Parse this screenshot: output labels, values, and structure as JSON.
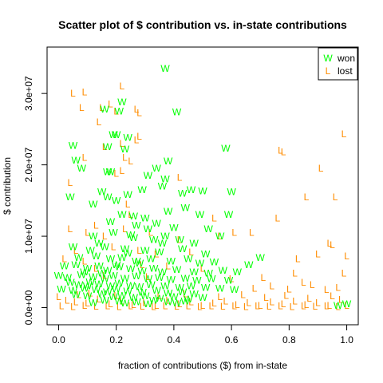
{
  "chart_data": {
    "type": "scatter",
    "title": "Scatter plot of $ contribution vs. in-state contributions",
    "xlabel": "fraction of contributions ($) from in-state",
    "ylabel": "$ contribution",
    "xlim": [
      -0.04,
      1.04
    ],
    "ylim": [
      -2400000,
      36500000
    ],
    "x_ticks": [
      0.0,
      0.2,
      0.4,
      0.6,
      0.8,
      1.0
    ],
    "x_tick_labels": [
      "0.0",
      "0.2",
      "0.4",
      "0.6",
      "0.8",
      "1.0"
    ],
    "y_ticks": [
      0,
      10000000,
      20000000,
      30000000
    ],
    "y_tick_labels": [
      "0.0e+00",
      "1.0e+07",
      "2.0e+07",
      "3.0e+07"
    ],
    "grid": false,
    "legend_position": "top-right",
    "series": [
      {
        "name": "won",
        "marker": "W",
        "color": "#00ff00",
        "points": [
          [
            0.37,
            33500000
          ],
          [
            0.22,
            28800000
          ],
          [
            0.16,
            27800000
          ],
          [
            0.21,
            27500000
          ],
          [
            0.41,
            27400000
          ],
          [
            0.2,
            24200000
          ],
          [
            0.19,
            24200000
          ],
          [
            0.24,
            23800000
          ],
          [
            0.17,
            22500000
          ],
          [
            0.23,
            22200000
          ],
          [
            0.58,
            22300000
          ],
          [
            0.05,
            22700000
          ],
          [
            0.38,
            20500000
          ],
          [
            0.06,
            20600000
          ],
          [
            0.08,
            19500000
          ],
          [
            0.34,
            19500000
          ],
          [
            0.17,
            19000000
          ],
          [
            0.18,
            19000000
          ],
          [
            0.31,
            18500000
          ],
          [
            0.37,
            18000000
          ],
          [
            0.04,
            15500000
          ],
          [
            0.15,
            16200000
          ],
          [
            0.17,
            15500000
          ],
          [
            0.2,
            15000000
          ],
          [
            0.24,
            15800000
          ],
          [
            0.29,
            16500000
          ],
          [
            0.36,
            17000000
          ],
          [
            0.43,
            16000000
          ],
          [
            0.46,
            16500000
          ],
          [
            0.5,
            16300000
          ],
          [
            0.6,
            16200000
          ],
          [
            0.12,
            14500000
          ],
          [
            0.22,
            13000000
          ],
          [
            0.26,
            12800000
          ],
          [
            0.3,
            12500000
          ],
          [
            0.38,
            13500000
          ],
          [
            0.44,
            14000000
          ],
          [
            0.49,
            13000000
          ],
          [
            0.59,
            13000000
          ],
          [
            0.27,
            11500000
          ],
          [
            0.31,
            11000000
          ],
          [
            0.34,
            11800000
          ],
          [
            0.4,
            11200000
          ],
          [
            0.52,
            11000000
          ],
          [
            0.12,
            10000000
          ],
          [
            0.19,
            10500000
          ],
          [
            0.25,
            10200000
          ],
          [
            0.33,
            9500000
          ],
          [
            0.37,
            10000000
          ],
          [
            0.42,
            9500000
          ],
          [
            0.47,
            9000000
          ],
          [
            0.56,
            10000000
          ],
          [
            0.05,
            8500000
          ],
          [
            0.11,
            8000000
          ],
          [
            0.16,
            8500000
          ],
          [
            0.23,
            8200000
          ],
          [
            0.3,
            8000000
          ],
          [
            0.35,
            7800000
          ],
          [
            0.43,
            8200000
          ],
          [
            0.51,
            7500000
          ],
          [
            0.07,
            7000000
          ],
          [
            0.13,
            7200000
          ],
          [
            0.18,
            6800000
          ],
          [
            0.22,
            7000000
          ],
          [
            0.27,
            6500000
          ],
          [
            0.32,
            6800000
          ],
          [
            0.39,
            6500000
          ],
          [
            0.45,
            6800000
          ],
          [
            0.49,
            6200000
          ],
          [
            0.54,
            6400000
          ],
          [
            0.7,
            7000000
          ],
          [
            0.02,
            5800000
          ],
          [
            0.06,
            6000000
          ],
          [
            0.1,
            5500000
          ],
          [
            0.14,
            5800000
          ],
          [
            0.17,
            5200000
          ],
          [
            0.21,
            5700000
          ],
          [
            0.25,
            5400000
          ],
          [
            0.29,
            5100000
          ],
          [
            0.33,
            5500000
          ],
          [
            0.36,
            5000000
          ],
          [
            0.41,
            5300000
          ],
          [
            0.47,
            5000000
          ],
          [
            0.52,
            4800000
          ],
          [
            0.57,
            5200000
          ],
          [
            0.62,
            5000000
          ],
          [
            0.66,
            6000000
          ],
          [
            0.0,
            4500000
          ],
          [
            0.03,
            4200000
          ],
          [
            0.08,
            4600000
          ],
          [
            0.12,
            4300000
          ],
          [
            0.16,
            4000000
          ],
          [
            0.19,
            4500000
          ],
          [
            0.23,
            4100000
          ],
          [
            0.27,
            4400000
          ],
          [
            0.31,
            4000000
          ],
          [
            0.35,
            4200000
          ],
          [
            0.39,
            3900000
          ],
          [
            0.44,
            4100000
          ],
          [
            0.48,
            3800000
          ],
          [
            0.53,
            4000000
          ],
          [
            0.59,
            3800000
          ],
          [
            0.04,
            3500000
          ],
          [
            0.07,
            3200000
          ],
          [
            0.11,
            3600000
          ],
          [
            0.14,
            3300000
          ],
          [
            0.18,
            3000000
          ],
          [
            0.21,
            3400000
          ],
          [
            0.25,
            3100000
          ],
          [
            0.28,
            2900000
          ],
          [
            0.32,
            3200000
          ],
          [
            0.37,
            3000000
          ],
          [
            0.42,
            2800000
          ],
          [
            0.46,
            3000000
          ],
          [
            0.51,
            2800000
          ],
          [
            0.56,
            2700000
          ],
          [
            0.61,
            2500000
          ],
          [
            0.01,
            2600000
          ],
          [
            0.05,
            2400000
          ],
          [
            0.09,
            2700000
          ],
          [
            0.13,
            2500000
          ],
          [
            0.17,
            2200000
          ],
          [
            0.2,
            2600000
          ],
          [
            0.24,
            2300000
          ],
          [
            0.29,
            2100000
          ],
          [
            0.34,
            2400000
          ],
          [
            0.38,
            2000000
          ],
          [
            0.43,
            2200000
          ],
          [
            0.47,
            1900000
          ],
          [
            0.06,
            1800000
          ],
          [
            0.1,
            1600000
          ],
          [
            0.15,
            1900000
          ],
          [
            0.19,
            1500000
          ],
          [
            0.22,
            1700000
          ],
          [
            0.26,
            1400000
          ],
          [
            0.3,
            1600000
          ],
          [
            0.35,
            1300000
          ],
          [
            0.4,
            1500000
          ],
          [
            0.45,
            1200000
          ],
          [
            0.5,
            1400000
          ],
          [
            0.16,
            1000000
          ],
          [
            0.21,
            900000
          ],
          [
            0.27,
            800000
          ],
          [
            0.33,
            1000000
          ],
          [
            0.38,
            800000
          ],
          [
            0.44,
            900000
          ],
          [
            0.12,
            700000
          ],
          [
            0.23,
            600000
          ],
          [
            0.31,
            500000
          ],
          [
            0.41,
            600000
          ],
          [
            0.18,
            12000000
          ],
          [
            0.14,
            9000000
          ],
          [
            0.09,
            5000000
          ],
          [
            0.26,
            9800000
          ],
          [
            0.2,
            6000000
          ],
          [
            0.15,
            4800000
          ],
          [
            0.24,
            7600000
          ],
          [
            0.28,
            6200000
          ],
          [
            0.36,
            9000000
          ],
          [
            0.1,
            3000000
          ],
          [
            1.0,
            500000
          ],
          [
            0.97,
            300000
          ]
        ]
      },
      {
        "name": "lost",
        "marker": "L",
        "color": "#ff8c00",
        "points": [
          [
            0.05,
            30000000
          ],
          [
            0.09,
            30200000
          ],
          [
            0.22,
            31000000
          ],
          [
            0.08,
            28000000
          ],
          [
            0.15,
            28000000
          ],
          [
            0.18,
            28500000
          ],
          [
            0.2,
            27500000
          ],
          [
            0.27,
            27800000
          ],
          [
            0.28,
            27300000
          ],
          [
            0.14,
            26000000
          ],
          [
            0.28,
            24000000
          ],
          [
            0.27,
            23500000
          ],
          [
            0.22,
            23000000
          ],
          [
            0.16,
            22500000
          ],
          [
            0.99,
            24300000
          ],
          [
            0.77,
            22000000
          ],
          [
            0.78,
            21800000
          ],
          [
            0.09,
            21000000
          ],
          [
            0.23,
            21000000
          ],
          [
            0.25,
            20500000
          ],
          [
            0.91,
            19500000
          ],
          [
            0.22,
            19200000
          ],
          [
            0.2,
            18800000
          ],
          [
            0.42,
            18200000
          ],
          [
            0.04,
            17500000
          ],
          [
            0.86,
            15500000
          ],
          [
            0.96,
            15500000
          ],
          [
            0.24,
            14500000
          ],
          [
            0.25,
            13000000
          ],
          [
            0.76,
            12500000
          ],
          [
            0.54,
            12500000
          ],
          [
            0.13,
            11500000
          ],
          [
            0.23,
            11000000
          ],
          [
            0.61,
            10500000
          ],
          [
            0.67,
            10500000
          ],
          [
            0.04,
            11000000
          ],
          [
            0.1,
            10500000
          ],
          [
            0.16,
            10000000
          ],
          [
            0.32,
            10500000
          ],
          [
            0.42,
            9500000
          ],
          [
            0.56,
            10000000
          ],
          [
            0.94,
            9000000
          ],
          [
            0.95,
            8800000
          ],
          [
            0.06,
            8000000
          ],
          [
            0.19,
            8500000
          ],
          [
            0.28,
            8000000
          ],
          [
            0.34,
            7500000
          ],
          [
            0.46,
            7800000
          ],
          [
            0.9,
            7500000
          ],
          [
            1.0,
            7200000
          ],
          [
            0.02,
            6800000
          ],
          [
            0.09,
            6500000
          ],
          [
            0.29,
            6000000
          ],
          [
            0.83,
            6800000
          ],
          [
            0.13,
            5500000
          ],
          [
            0.38,
            5800000
          ],
          [
            0.5,
            5500000
          ],
          [
            0.82,
            4800000
          ],
          [
            0.99,
            4800000
          ],
          [
            0.16,
            4500000
          ],
          [
            0.31,
            4300000
          ],
          [
            0.6,
            4000000
          ],
          [
            0.71,
            4200000
          ],
          [
            0.85,
            3500000
          ],
          [
            0.74,
            3000000
          ],
          [
            0.68,
            2700000
          ],
          [
            0.8,
            2600000
          ],
          [
            0.88,
            3200000
          ],
          [
            0.93,
            2500000
          ],
          [
            0.97,
            2800000
          ],
          [
            0.0,
            1500000
          ],
          [
            0.03,
            1000000
          ],
          [
            0.06,
            800000
          ],
          [
            0.1,
            600000
          ],
          [
            0.14,
            1200000
          ],
          [
            0.18,
            500000
          ],
          [
            0.22,
            900000
          ],
          [
            0.26,
            400000
          ],
          [
            0.3,
            700000
          ],
          [
            0.34,
            300000
          ],
          [
            0.38,
            1000000
          ],
          [
            0.42,
            500000
          ],
          [
            0.46,
            800000
          ],
          [
            0.5,
            300000
          ],
          [
            0.54,
            600000
          ],
          [
            0.58,
            900000
          ],
          [
            0.62,
            400000
          ],
          [
            0.66,
            700000
          ],
          [
            0.7,
            300000
          ],
          [
            0.74,
            800000
          ],
          [
            0.78,
            500000
          ],
          [
            0.82,
            900000
          ],
          [
            0.86,
            400000
          ],
          [
            0.9,
            700000
          ],
          [
            0.94,
            300000
          ],
          [
            0.98,
            1100000
          ],
          [
            0.01,
            200000
          ],
          [
            0.05,
            100000
          ],
          [
            0.09,
            300000
          ],
          [
            0.13,
            150000
          ],
          [
            0.17,
            250000
          ],
          [
            0.21,
            100000
          ],
          [
            0.25,
            200000
          ],
          [
            0.29,
            150000
          ],
          [
            0.33,
            100000
          ],
          [
            0.37,
            250000
          ],
          [
            0.41,
            150000
          ],
          [
            0.45,
            200000
          ],
          [
            0.49,
            100000
          ],
          [
            0.53,
            250000
          ],
          [
            0.57,
            150000
          ],
          [
            0.61,
            200000
          ],
          [
            0.65,
            100000
          ],
          [
            0.69,
            250000
          ],
          [
            0.73,
            150000
          ],
          [
            0.77,
            200000
          ],
          [
            0.81,
            100000
          ],
          [
            0.85,
            250000
          ],
          [
            0.89,
            150000
          ],
          [
            0.93,
            200000
          ],
          [
            0.97,
            100000
          ],
          [
            1.0,
            300000
          ],
          [
            0.07,
            1800000
          ],
          [
            0.11,
            2000000
          ],
          [
            0.2,
            1700000
          ],
          [
            0.35,
            1600000
          ],
          [
            0.44,
            1900000
          ],
          [
            0.56,
            1500000
          ],
          [
            0.64,
            1800000
          ],
          [
            0.72,
            1400000
          ],
          [
            0.79,
            1700000
          ],
          [
            0.87,
            1300000
          ],
          [
            0.95,
            1600000
          ]
        ]
      }
    ]
  }
}
